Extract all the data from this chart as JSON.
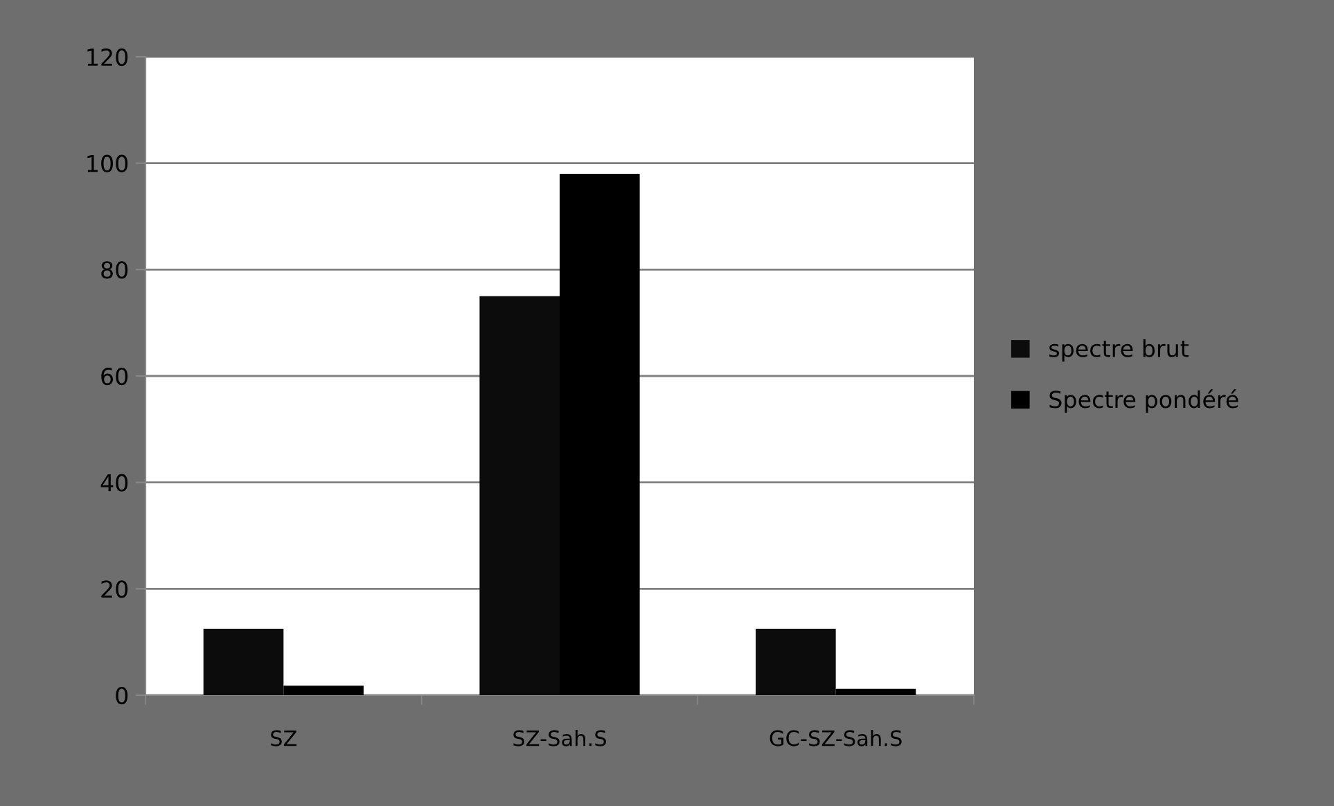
{
  "chart_data": {
    "type": "bar",
    "categories": [
      "SZ",
      "SZ-Sah.S",
      "GC-SZ-Sah.S"
    ],
    "series": [
      {
        "name": "spectre brut",
        "color": "#0c0c0c",
        "values": [
          12.5,
          75,
          12.5
        ]
      },
      {
        "name": "Spectre pondéré",
        "color": "#000000",
        "values": [
          1.8,
          98,
          1.2
        ]
      }
    ],
    "ylim": [
      0,
      120
    ],
    "yticks": [
      0,
      20,
      40,
      60,
      80,
      100,
      120
    ],
    "grid": "y",
    "legend": "right"
  }
}
